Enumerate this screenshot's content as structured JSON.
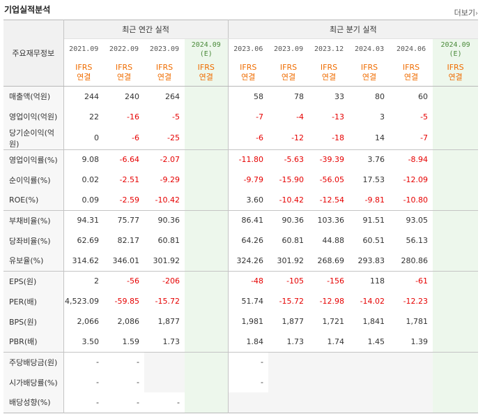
{
  "header": {
    "title": "기업실적분석",
    "more_label": "더보기",
    "more_arrow": "›"
  },
  "table": {
    "label_header": "주요재무정보",
    "group_annual": "최근 연간 실적",
    "group_quarter": "최근 분기 실적",
    "annual_periods": [
      {
        "date": "2021.09",
        "note": "",
        "type1": "IFRS",
        "type2": "연결",
        "est": false
      },
      {
        "date": "2022.09",
        "note": "",
        "type1": "IFRS",
        "type2": "연결",
        "est": false
      },
      {
        "date": "2023.09",
        "note": "",
        "type1": "IFRS",
        "type2": "연결",
        "est": false
      },
      {
        "date": "2024.09",
        "note": "(E)",
        "type1": "IFRS",
        "type2": "연결",
        "est": true
      }
    ],
    "quarter_periods": [
      {
        "date": "2023.06",
        "note": "",
        "type1": "IFRS",
        "type2": "연결",
        "est": false
      },
      {
        "date": "2023.09",
        "note": "",
        "type1": "IFRS",
        "type2": "연결",
        "est": false
      },
      {
        "date": "2023.12",
        "note": "",
        "type1": "IFRS",
        "type2": "연결",
        "est": false
      },
      {
        "date": "2024.03",
        "note": "",
        "type1": "IFRS",
        "type2": "연결",
        "est": false
      },
      {
        "date": "2024.06",
        "note": "",
        "type1": "IFRS",
        "type2": "연결",
        "est": false
      },
      {
        "date": "2024.09",
        "note": "(E)",
        "type1": "IFRS",
        "type2": "연결",
        "est": true
      }
    ],
    "rows": [
      {
        "label": "매출액(억원)",
        "group_start": false,
        "annual": [
          "244",
          "240",
          "264",
          ""
        ],
        "quarter": [
          "58",
          "78",
          "33",
          "80",
          "60",
          ""
        ]
      },
      {
        "label": "영업이익(억원)",
        "group_start": false,
        "annual": [
          "22",
          "-16",
          "-5",
          ""
        ],
        "quarter": [
          "-7",
          "-4",
          "-13",
          "3",
          "-5",
          ""
        ]
      },
      {
        "label": "당기순이익(억원)",
        "group_start": false,
        "annual": [
          "0",
          "-6",
          "-25",
          ""
        ],
        "quarter": [
          "-6",
          "-12",
          "-18",
          "14",
          "-7",
          ""
        ]
      },
      {
        "label": "영업이익률(%)",
        "group_start": true,
        "annual": [
          "9.08",
          "-6.64",
          "-2.07",
          ""
        ],
        "quarter": [
          "-11.80",
          "-5.63",
          "-39.39",
          "3.76",
          "-8.94",
          ""
        ]
      },
      {
        "label": "순이익률(%)",
        "group_start": false,
        "annual": [
          "0.02",
          "-2.51",
          "-9.29",
          ""
        ],
        "quarter": [
          "-9.79",
          "-15.90",
          "-56.05",
          "17.53",
          "-12.09",
          ""
        ]
      },
      {
        "label": "ROE(%)",
        "group_start": false,
        "annual": [
          "0.09",
          "-2.59",
          "-10.42",
          ""
        ],
        "quarter": [
          "3.60",
          "-10.42",
          "-12.54",
          "-9.81",
          "-10.80",
          ""
        ]
      },
      {
        "label": "부채비율(%)",
        "group_start": true,
        "annual": [
          "94.31",
          "75.77",
          "90.36",
          ""
        ],
        "quarter": [
          "86.41",
          "90.36",
          "103.36",
          "91.51",
          "93.05",
          ""
        ]
      },
      {
        "label": "당좌비율(%)",
        "group_start": false,
        "annual": [
          "62.69",
          "82.17",
          "60.81",
          ""
        ],
        "quarter": [
          "64.26",
          "60.81",
          "44.88",
          "60.51",
          "56.13",
          ""
        ]
      },
      {
        "label": "유보율(%)",
        "group_start": false,
        "annual": [
          "314.62",
          "346.01",
          "301.92",
          ""
        ],
        "quarter": [
          "324.26",
          "301.92",
          "268.69",
          "293.83",
          "280.86",
          ""
        ]
      },
      {
        "label": "EPS(원)",
        "group_start": true,
        "annual": [
          "2",
          "-56",
          "-206",
          ""
        ],
        "quarter": [
          "-48",
          "-105",
          "-156",
          "118",
          "-61",
          ""
        ]
      },
      {
        "label": "PER(배)",
        "group_start": false,
        "annual": [
          "4,523.09",
          "-59.85",
          "-15.72",
          ""
        ],
        "quarter": [
          "51.74",
          "-15.72",
          "-12.98",
          "-14.02",
          "-12.23",
          ""
        ]
      },
      {
        "label": "BPS(원)",
        "group_start": false,
        "annual": [
          "2,066",
          "2,086",
          "1,877",
          ""
        ],
        "quarter": [
          "1,981",
          "1,877",
          "1,721",
          "1,841",
          "1,781",
          ""
        ]
      },
      {
        "label": "PBR(배)",
        "group_start": false,
        "annual": [
          "3.50",
          "1.59",
          "1.73",
          ""
        ],
        "quarter": [
          "1.84",
          "1.73",
          "1.74",
          "1.45",
          "1.39",
          ""
        ]
      },
      {
        "label": "주당배당금(원)",
        "group_start": true,
        "annual": [
          "-",
          "-",
          null,
          ""
        ],
        "quarter": [
          "-",
          null,
          null,
          null,
          null,
          ""
        ]
      },
      {
        "label": "시가배당률(%)",
        "group_start": false,
        "annual": [
          "-",
          "-",
          null,
          ""
        ],
        "quarter": [
          "-",
          null,
          null,
          null,
          null,
          ""
        ]
      },
      {
        "label": "배당성향(%)",
        "group_start": false,
        "annual": [
          "-",
          "-",
          "-",
          ""
        ],
        "quarter": [
          null,
          null,
          null,
          null,
          null,
          ""
        ]
      }
    ]
  }
}
